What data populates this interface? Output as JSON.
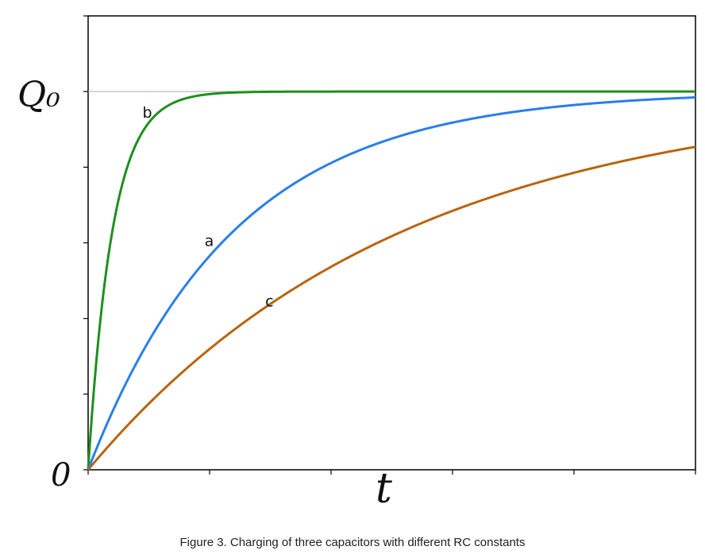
{
  "chart_data": {
    "type": "line",
    "title": "",
    "xlabel": "t",
    "ylabel": "",
    "y_tick_labels": {
      "top": "Q₀",
      "bottom": "0"
    },
    "xlim": [
      0,
      5
    ],
    "ylim": [
      0,
      1.2
    ],
    "asymptote": 1.0,
    "grid": false,
    "legend": "none",
    "series": [
      {
        "name": "b",
        "color": "#1f8f1f",
        "tau": 0.2
      },
      {
        "name": "a",
        "color": "#2a7fea",
        "tau": 1.2
      },
      {
        "name": "c",
        "color": "#b8650f",
        "tau": 2.6
      }
    ]
  },
  "caption": "Figure 3. Charging of three capacitors with different RC constants"
}
